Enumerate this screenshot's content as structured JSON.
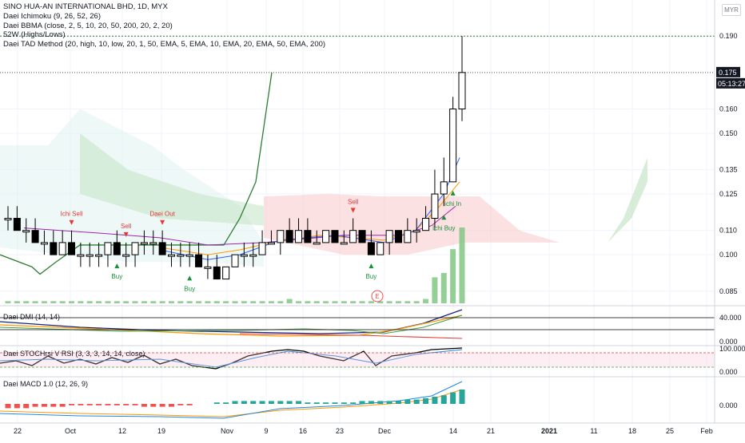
{
  "legend": {
    "title": "SINO HUA-AN INTERNATIONAL BHD, 1D, MYX",
    "ind1": "Daei Ichimoku (9, 26, 52, 26)",
    "ind2": "Daei BBMA (close, 2, 5, 10, 20, 50, 200, 20, 2, 20)",
    "ind3": "52W (Highs/Lows)",
    "ind4": "Daei TAD Method (20, high, 10, low, 20, 1, 50, EMA, 5, EMA, 10, EMA, 20, EMA, 50, EMA, 200)"
  },
  "currency": "MYR",
  "price_badge": {
    "value": "0.175",
    "countdown": "05:13:27"
  },
  "pane_labels": {
    "dmi": "Daei DMI (14, 14)",
    "stoch": "Daei STOCHrsi V RSI (3, 3, 3, 14, 14, close)",
    "macd": "Daei MACD 1.0 (12, 26, 9)"
  },
  "chart_data": [
    {
      "type": "candlestick",
      "title": "SINO HUA-AN INTERNATIONAL BHD, 1D, MYX",
      "y_ticks": [
        "0.190",
        "0.175",
        "0.160",
        "0.150",
        "0.135",
        "0.125",
        "0.110",
        "0.100",
        "0.085"
      ],
      "ylim": [
        0.08,
        0.195
      ],
      "x_ticks": [
        "22",
        "Oct",
        "12",
        "19",
        "Nov",
        "9",
        "16",
        "23",
        "Dec",
        "14",
        "21",
        "2021",
        "11",
        "18",
        "25",
        "Feb"
      ],
      "grid": true,
      "last_price": 0.175,
      "candles": [
        {
          "o": 0.115,
          "h": 0.12,
          "l": 0.11,
          "c": 0.115
        },
        {
          "o": 0.115,
          "h": 0.12,
          "l": 0.11,
          "c": 0.11
        },
        {
          "o": 0.11,
          "h": 0.115,
          "l": 0.105,
          "c": 0.11
        },
        {
          "o": 0.11,
          "h": 0.115,
          "l": 0.105,
          "c": 0.105
        },
        {
          "o": 0.105,
          "h": 0.11,
          "l": 0.1,
          "c": 0.105
        },
        {
          "o": 0.105,
          "h": 0.11,
          "l": 0.1,
          "c": 0.1
        },
        {
          "o": 0.1,
          "h": 0.11,
          "l": 0.1,
          "c": 0.105
        },
        {
          "o": 0.105,
          "h": 0.11,
          "l": 0.1,
          "c": 0.1
        },
        {
          "o": 0.1,
          "h": 0.105,
          "l": 0.095,
          "c": 0.1
        },
        {
          "o": 0.1,
          "h": 0.105,
          "l": 0.095,
          "c": 0.1
        },
        {
          "o": 0.1,
          "h": 0.105,
          "l": 0.095,
          "c": 0.1
        },
        {
          "o": 0.1,
          "h": 0.105,
          "l": 0.095,
          "c": 0.105
        },
        {
          "o": 0.105,
          "h": 0.11,
          "l": 0.1,
          "c": 0.1
        },
        {
          "o": 0.1,
          "h": 0.105,
          "l": 0.095,
          "c": 0.1
        },
        {
          "o": 0.1,
          "h": 0.105,
          "l": 0.095,
          "c": 0.105
        },
        {
          "o": 0.105,
          "h": 0.11,
          "l": 0.1,
          "c": 0.105
        },
        {
          "o": 0.105,
          "h": 0.11,
          "l": 0.1,
          "c": 0.105
        },
        {
          "o": 0.105,
          "h": 0.11,
          "l": 0.1,
          "c": 0.1
        },
        {
          "o": 0.1,
          "h": 0.105,
          "l": 0.095,
          "c": 0.1
        },
        {
          "o": 0.1,
          "h": 0.105,
          "l": 0.095,
          "c": 0.1
        },
        {
          "o": 0.1,
          "h": 0.105,
          "l": 0.095,
          "c": 0.1
        },
        {
          "o": 0.1,
          "h": 0.105,
          "l": 0.095,
          "c": 0.095
        },
        {
          "o": 0.095,
          "h": 0.1,
          "l": 0.09,
          "c": 0.095
        },
        {
          "o": 0.095,
          "h": 0.1,
          "l": 0.09,
          "c": 0.09
        },
        {
          "o": 0.09,
          "h": 0.095,
          "l": 0.09,
          "c": 0.095
        },
        {
          "o": 0.095,
          "h": 0.1,
          "l": 0.095,
          "c": 0.1
        },
        {
          "o": 0.1,
          "h": 0.105,
          "l": 0.095,
          "c": 0.1
        },
        {
          "o": 0.1,
          "h": 0.105,
          "l": 0.095,
          "c": 0.1
        },
        {
          "o": 0.1,
          "h": 0.11,
          "l": 0.1,
          "c": 0.105
        },
        {
          "o": 0.105,
          "h": 0.11,
          "l": 0.105,
          "c": 0.105
        },
        {
          "o": 0.105,
          "h": 0.11,
          "l": 0.1,
          "c": 0.11
        },
        {
          "o": 0.11,
          "h": 0.115,
          "l": 0.105,
          "c": 0.105
        },
        {
          "o": 0.105,
          "h": 0.115,
          "l": 0.105,
          "c": 0.11
        },
        {
          "o": 0.11,
          "h": 0.115,
          "l": 0.105,
          "c": 0.105
        },
        {
          "o": 0.105,
          "h": 0.11,
          "l": 0.105,
          "c": 0.105
        },
        {
          "o": 0.105,
          "h": 0.11,
          "l": 0.105,
          "c": 0.11
        },
        {
          "o": 0.11,
          "h": 0.11,
          "l": 0.105,
          "c": 0.105
        },
        {
          "o": 0.105,
          "h": 0.11,
          "l": 0.105,
          "c": 0.105
        },
        {
          "o": 0.105,
          "h": 0.115,
          "l": 0.105,
          "c": 0.11
        },
        {
          "o": 0.11,
          "h": 0.11,
          "l": 0.105,
          "c": 0.105
        },
        {
          "o": 0.105,
          "h": 0.11,
          "l": 0.1,
          "c": 0.1
        },
        {
          "o": 0.1,
          "h": 0.105,
          "l": 0.1,
          "c": 0.105
        },
        {
          "o": 0.105,
          "h": 0.11,
          "l": 0.1,
          "c": 0.11
        },
        {
          "o": 0.11,
          "h": 0.11,
          "l": 0.105,
          "c": 0.105
        },
        {
          "o": 0.105,
          "h": 0.115,
          "l": 0.105,
          "c": 0.11
        },
        {
          "o": 0.11,
          "h": 0.115,
          "l": 0.105,
          "c": 0.11
        },
        {
          "o": 0.11,
          "h": 0.12,
          "l": 0.11,
          "c": 0.115
        },
        {
          "o": 0.115,
          "h": 0.135,
          "l": 0.11,
          "c": 0.125
        },
        {
          "o": 0.125,
          "h": 0.14,
          "l": 0.12,
          "c": 0.13
        },
        {
          "o": 0.13,
          "h": 0.165,
          "l": 0.13,
          "c": 0.16
        },
        {
          "o": 0.16,
          "h": 0.19,
          "l": 0.155,
          "c": 0.175
        }
      ],
      "signals": [
        {
          "label": "Ichi Sell",
          "type": "sell",
          "index": 7
        },
        {
          "label": "Sell",
          "type": "sell",
          "index": 13
        },
        {
          "label": "Buy",
          "type": "buy",
          "index": 12
        },
        {
          "label": "Daei Out",
          "type": "sell",
          "index": 17
        },
        {
          "label": "Buy",
          "type": "buy",
          "index": 20
        },
        {
          "label": "Sell",
          "type": "sell",
          "index": 38
        },
        {
          "label": "Buy",
          "type": "buy",
          "index": 40
        },
        {
          "label": "Ichi Buy",
          "type": "buy",
          "index": 48
        },
        {
          "label": "ichi In",
          "type": "buy",
          "index": 49
        }
      ],
      "volume": [
        1,
        1,
        1,
        1,
        1,
        1,
        1,
        1,
        1,
        1,
        1,
        1,
        1,
        1,
        1,
        1,
        1,
        1,
        1,
        1,
        1,
        1,
        1,
        1,
        1,
        1,
        1,
        1,
        1,
        1,
        1,
        2,
        1,
        1,
        1,
        1,
        1,
        1,
        1,
        1,
        1,
        1,
        1,
        1,
        1,
        1,
        2,
        12,
        14,
        25,
        35
      ],
      "earnings_marker": "E"
    },
    {
      "type": "line",
      "title": "Daei DMI (14, 14)",
      "y_ticks": [
        "40.000",
        "0.000"
      ],
      "series": []
    },
    {
      "type": "line",
      "title": "Daei STOCHrsi V RSI (3, 3, 3, 14, 14, close)",
      "y_ticks": [
        "100.000",
        "0.000"
      ],
      "series": []
    },
    {
      "type": "bar",
      "title": "Daei MACD 1.0 (12, 26, 9)",
      "y_ticks": [
        "0.000"
      ],
      "series": []
    }
  ],
  "colors": {
    "bull": "#ffffff",
    "bear": "#000000",
    "kumo_bull": "#c8e6c9",
    "kumo_bear": "#f8c8c8",
    "span_b": "#2e7d32",
    "buy": "#1b8f3a",
    "sell": "#e53935",
    "ema_blue": "#2962ff",
    "ema_orange": "#ff9800",
    "ema_purple": "#9c27b0",
    "volume": "#81c784",
    "macd_pos": "#26a69a",
    "macd_neg": "#ef5350"
  }
}
